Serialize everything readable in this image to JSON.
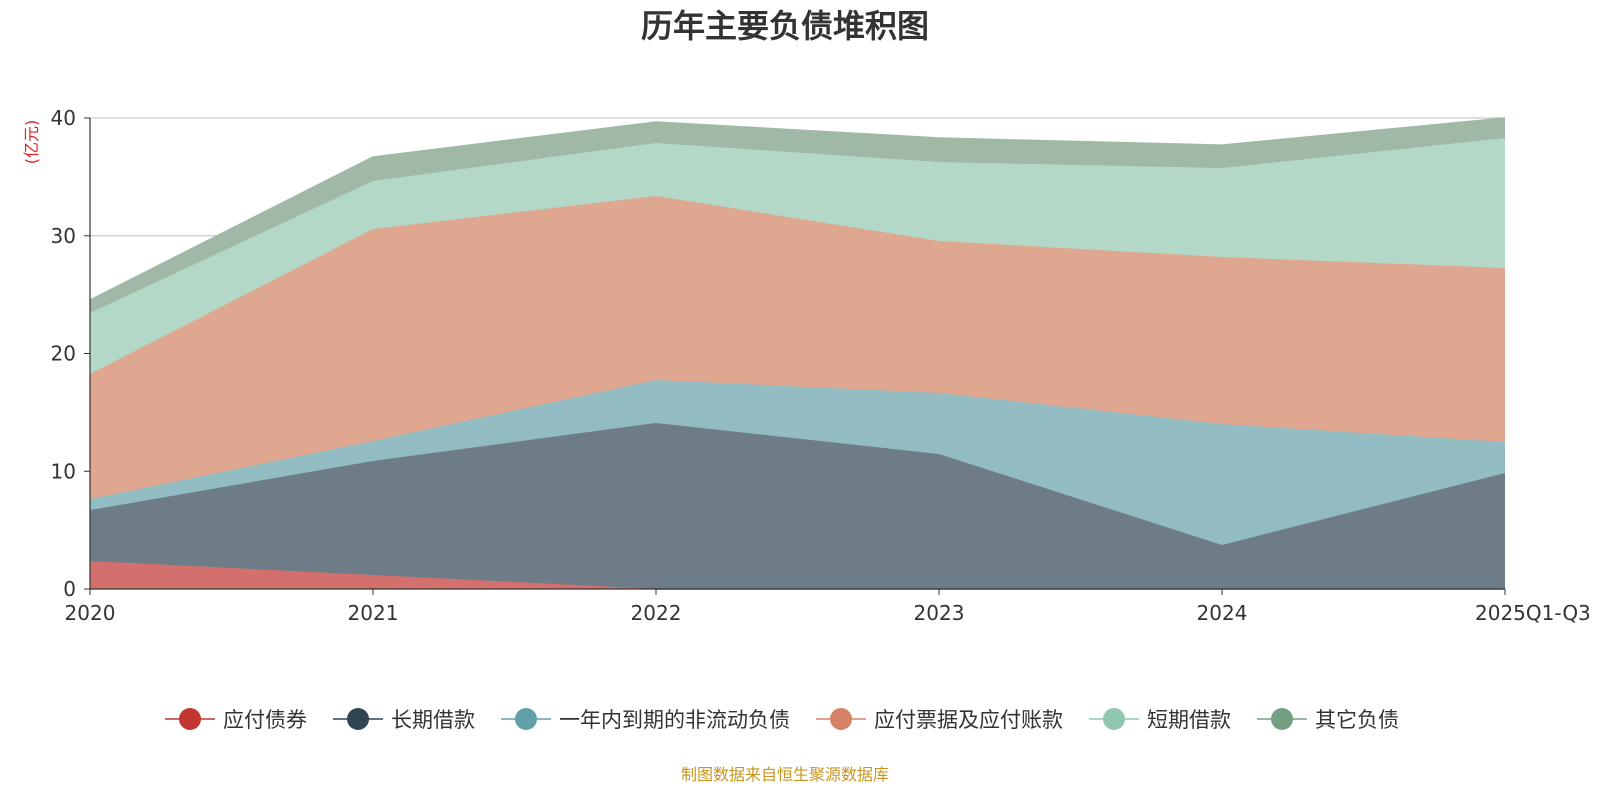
{
  "chart_data": {
    "type": "area",
    "stacked": true,
    "title": "历年主要负债堆积图",
    "ylabel": "(亿元)",
    "xlabel": "",
    "ylim": [
      0,
      40
    ],
    "yticks": [
      0,
      10,
      20,
      30,
      40
    ],
    "grid": true,
    "legend_position": "bottom",
    "categories": [
      "2020",
      "2021",
      "2022",
      "2023",
      "2024",
      "2025Q1-Q3"
    ],
    "series": [
      {
        "name": "应付债券",
        "color": "#c23531",
        "fill": "#d3706e",
        "values": [
          2.38,
          1.19,
          0,
          0,
          0,
          0
        ]
      },
      {
        "name": "长期借款",
        "color": "#2f4554",
        "fill": "#6e7c87",
        "values": [
          4.32,
          9.68,
          14.1,
          11.46,
          3.74,
          9.85
        ]
      },
      {
        "name": "一年内到期的非流动负债",
        "color": "#61a0a8",
        "fill": "#92bbc2",
        "values": [
          0.94,
          1.7,
          3.65,
          5.19,
          10.27,
          2.63
        ]
      },
      {
        "name": "应付票据及应付账款",
        "color": "#d48265",
        "fill": "#e0a790",
        "values": [
          10.62,
          18.0,
          15.63,
          12.9,
          14.19,
          14.78
        ]
      },
      {
        "name": "短期借款",
        "color": "#91c7ae",
        "fill": "#b3d8c7",
        "values": [
          5.18,
          4.08,
          4.5,
          6.71,
          7.55,
          11.04
        ]
      },
      {
        "name": "其它负债",
        "color": "#749f83",
        "fill": "#9fb9a6",
        "values": [
          1.1,
          2.04,
          1.78,
          2.04,
          1.95,
          1.7
        ]
      }
    ],
    "source_note": "制图数据来自恒生聚源数据库"
  }
}
